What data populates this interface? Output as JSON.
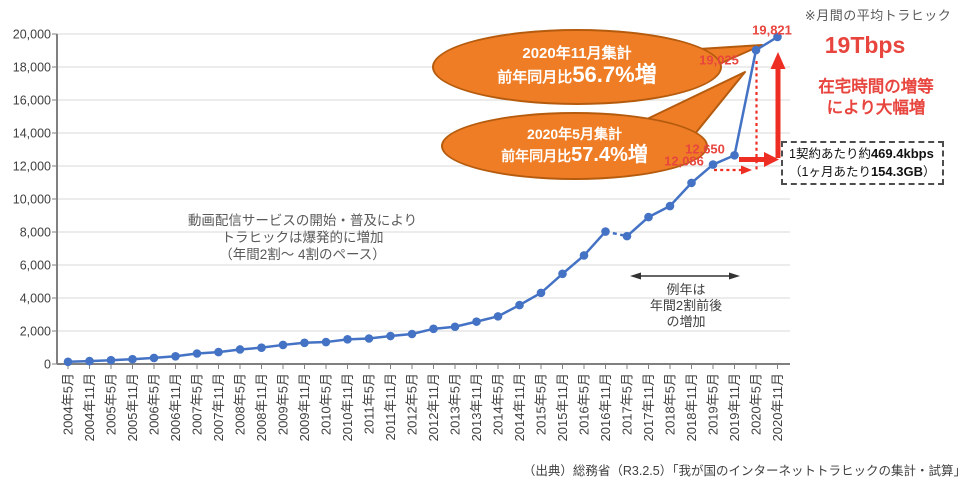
{
  "chart_data": {
    "type": "line",
    "title": "",
    "xlabel": "",
    "ylabel": "",
    "ylim": [
      0,
      20000
    ],
    "ytick_step": 2000,
    "grid": true,
    "legend": false,
    "line_color": "#4472C4",
    "categories": [
      "2004年5月",
      "2004年11月",
      "2005年5月",
      "2005年11月",
      "2006年5月",
      "2006年11月",
      "2007年5月",
      "2007年11月",
      "2008年5月",
      "2008年11月",
      "2009年5月",
      "2009年11月",
      "2010年5月",
      "2010年11月",
      "2011年5月",
      "2011年11月",
      "2012年5月",
      "2012年11月",
      "2013年5月",
      "2013年11月",
      "2014年5月",
      "2014年11月",
      "2015年5月",
      "2015年11月",
      "2016年5月",
      "2016年11月",
      "2017年5月",
      "2017年11月",
      "2018年5月",
      "2018年11月",
      "2019年5月",
      "2019年11月",
      "2020年5月",
      "2020年11月"
    ],
    "series": [
      {
        "name": "月間の平均トラヒック",
        "values": [
          133,
          176,
          230,
          290,
          368,
          468,
          637,
          722,
          880,
          990,
          1155,
          1286,
          1330,
          1495,
          1545,
          1696,
          1818,
          2131,
          2257,
          2567,
          2886,
          3571,
          4310,
          5467,
          6579,
          8027,
          7750,
          8903,
          9574,
          10976,
          12086,
          12650,
          19025,
          19821
        ]
      }
    ],
    "dashed_break_between": [
      "2016年11月",
      "2017年5月"
    ]
  },
  "annotations": {
    "note_top_right": "※月間の平均トラヒック",
    "big_value": "19Tbps",
    "reason_line1": "在宅時間の増等",
    "reason_line2": "により大幅増",
    "bubble1": {
      "line1": "2020年11月集計",
      "line2_prefix": "前年同月比",
      "line2_big": "56.7%増"
    },
    "bubble2": {
      "line1": "2020年5月集計",
      "line2_prefix": "前年同月比",
      "line2_big": "57.4%増"
    },
    "video_note_line1": "動画配信サービスの開始・普及により",
    "video_note_line2": "トラヒックは爆発的に増加",
    "video_note_line3": "（年間2割～ 4割のペース）",
    "usual_note_line1": "例年は",
    "usual_note_line2": "年間2割前後",
    "usual_note_line3": "の増加",
    "per_contract_line1_prefix": "1契約あたり約",
    "per_contract_line1_value": "469.4kbps",
    "per_contract_line2_prefix": "（1ヶ月あたり",
    "per_contract_line2_value": "154.3GB",
    "per_contract_line2_suffix": "）",
    "point_labels": [
      {
        "text": "19,821",
        "category": "2020年11月"
      },
      {
        "text": "19,025",
        "category": "2020年5月"
      },
      {
        "text": "12,650",
        "category": "2019年11月"
      },
      {
        "text": "12,086",
        "category": "2019年5月"
      }
    ],
    "source": "（出典）総務省（R3.2.5）「我が国のインターネットトラヒックの集計・試算」"
  },
  "colors": {
    "line": "#4472C4",
    "bubble_fill": "#EF7D26",
    "bubble_border": "#B55B0E",
    "red_text": "#E8453E",
    "red_arrow": "#EE2D23",
    "grid": "#D9D9D9",
    "axis": "#808080",
    "note_grey": "#595959"
  }
}
